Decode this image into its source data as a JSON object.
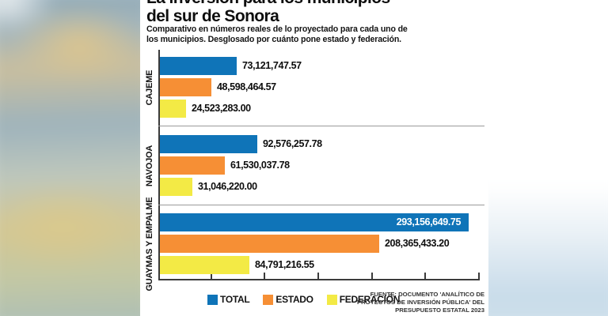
{
  "header": {
    "title_line1": "La inversión para los municipios",
    "title_line2": "del sur de Sonora",
    "subtitle_line1": "Comparativo en números reales de lo proyectado para cada uno de",
    "subtitle_line2": "los municipios. Desglosado por cuánto pone estado y federación."
  },
  "legend": {
    "items": [
      {
        "label": "TOTAL",
        "color": "#0f74b8"
      },
      {
        "label": "ESTADO",
        "color": "#f68f35"
      },
      {
        "label": "FEDERACIÓN",
        "color": "#f3ea45"
      }
    ]
  },
  "source": {
    "line1": "FUENTE: DOCUMENTO 'ANALÍTICO DE",
    "line2": "PROYECTOS DE INVERSIÓN PÚBLICA' DEL",
    "line3": "PRESUPUESTO ESTATAL 2023"
  },
  "chart_data": {
    "type": "bar",
    "orientation": "horizontal",
    "title": "La inversión para los municipios del sur de Sonora",
    "categories": [
      "CAJEME",
      "NAVOJOA",
      "GUAYMAS Y EMPALME"
    ],
    "series": [
      {
        "name": "TOTAL",
        "color": "#0f74b8",
        "values": [
          73121747.57,
          92576257.78,
          293156649.75
        ],
        "value_labels": [
          "73,121,747.57",
          "92,576,257.78",
          "293,156,649.75"
        ]
      },
      {
        "name": "ESTADO",
        "color": "#f68f35",
        "values": [
          48598464.57,
          61530037.78,
          208365433.2
        ],
        "value_labels": [
          "48,598,464.57",
          "61,530,037.78",
          "208,365,433.20"
        ]
      },
      {
        "name": "FEDERACIÓN",
        "color": "#f3ea45",
        "values": [
          24523283.0,
          31046220.0,
          84791216.55
        ],
        "value_labels": [
          "24,523,283.00",
          "31,046,220.00",
          "84,791,216.55"
        ]
      }
    ],
    "xmax": 293156649.75,
    "axis_tick_count": 6,
    "tick_labels_shown": false,
    "grid": false,
    "legend_position": "bottom"
  }
}
